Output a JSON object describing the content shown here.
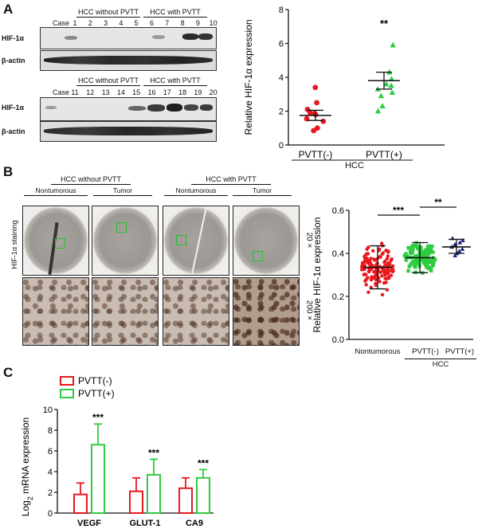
{
  "panels": {
    "a": "A",
    "b": "B",
    "c": "C"
  },
  "blots": {
    "group_without": "HCC without PVTT",
    "group_with": "HCC with PVTT",
    "case_label": "Case",
    "row_hif": "HIF-1α",
    "row_actin": "β-actin",
    "top_cases": [
      "1",
      "2",
      "3",
      "4",
      "5",
      "6",
      "7",
      "8",
      "9",
      "10"
    ],
    "bottom_cases": [
      "11",
      "12",
      "13",
      "14",
      "15",
      "16",
      "17",
      "18",
      "19",
      "20"
    ]
  },
  "ihc": {
    "group_without": "HCC without PVTT",
    "group_with": "HCC with PVTT",
    "sub_nontumorous": "Nontumorous",
    "sub_tumor": "Tumor",
    "side_label": "HIF-1α staining",
    "mag_low": "20 ×",
    "mag_high": "200 ×"
  },
  "chart_data": [
    {
      "panel": "A",
      "type": "scatter",
      "ylabel": "Relative HIF-1α expression",
      "ylim": [
        0,
        8
      ],
      "yticks": [
        "0",
        "2",
        "4",
        "6",
        "8"
      ],
      "categories": [
        "PVTT(-)",
        "PVTT(+)"
      ],
      "group_label": "HCC",
      "significance": "**",
      "series": [
        {
          "name": "PVTT(-)",
          "color": "#e8181e",
          "marker": "circle",
          "values": [
            3.4,
            2.5,
            2.1,
            1.9,
            1.85,
            1.8,
            1.55,
            1.4,
            1.0,
            0.85
          ],
          "mean": 1.75,
          "sem_low": 1.45,
          "sem_high": 2.05
        },
        {
          "name": "PVTT(+)",
          "color": "#2ecc40",
          "marker": "triangle",
          "values": [
            5.9,
            4.3,
            3.9,
            3.6,
            3.5,
            3.3,
            3.1,
            2.9,
            2.3,
            2.0
          ],
          "mean": 3.8,
          "sem_low": 3.3,
          "sem_high": 4.3
        }
      ]
    },
    {
      "panel": "B",
      "type": "scatter",
      "ylabel": "Relative HIF-1α expression",
      "ylim": [
        0,
        0.6
      ],
      "yticks": [
        "0.0",
        "0.2",
        "0.4",
        "0.6"
      ],
      "categories": [
        "Nontumorous",
        "PVTT(-)",
        "PVTT(+)"
      ],
      "group_label": "HCC",
      "significance": [
        {
          "between": [
            "Nontumorous",
            "PVTT(-)"
          ],
          "label": "***"
        },
        {
          "between": [
            "PVTT(-)",
            "PVTT(+)"
          ],
          "label": "**"
        }
      ],
      "series": [
        {
          "name": "Nontumorous",
          "color": "#e8181e",
          "marker": "circle",
          "n": 140,
          "mean": 0.335,
          "sd_low": 0.235,
          "sd_high": 0.435,
          "min": 0.08,
          "max": 0.5
        },
        {
          "name": "PVTT(-)",
          "color": "#2ecc40",
          "marker": "square",
          "n": 110,
          "mean": 0.38,
          "sd_low": 0.31,
          "sd_high": 0.45,
          "min": 0.18,
          "max": 0.52
        },
        {
          "name": "PVTT(+)",
          "color": "#1a237e",
          "marker": "triangle",
          "n": 10,
          "values": [
            0.47,
            0.46,
            0.45,
            0.44,
            0.44,
            0.43,
            0.42,
            0.41,
            0.4,
            0.39
          ],
          "mean": 0.43,
          "sd_low": 0.4,
          "sd_high": 0.465
        }
      ]
    },
    {
      "panel": "C",
      "type": "bar",
      "ylabel": "Log2 mRNA expression",
      "ylabel_main": "Log",
      "ylabel_sub": "2",
      "ylabel_rest": "mRNA expression",
      "ylim": [
        0,
        10
      ],
      "yticks": [
        "0",
        "2",
        "4",
        "6",
        "8",
        "10"
      ],
      "categories": [
        "VEGF",
        "GLUT-1",
        "CA9"
      ],
      "series": [
        {
          "name": "PVTT(-)",
          "color": "#e8181e",
          "values": [
            1.8,
            2.1,
            2.4
          ],
          "errors": [
            1.1,
            1.3,
            1.0
          ]
        },
        {
          "name": "PVTT(+)",
          "color": "#2ecc40",
          "values": [
            6.6,
            3.7,
            3.4
          ],
          "errors": [
            2.0,
            1.5,
            0.8
          ]
        }
      ],
      "significance": [
        "***",
        "***",
        "***"
      ]
    }
  ]
}
